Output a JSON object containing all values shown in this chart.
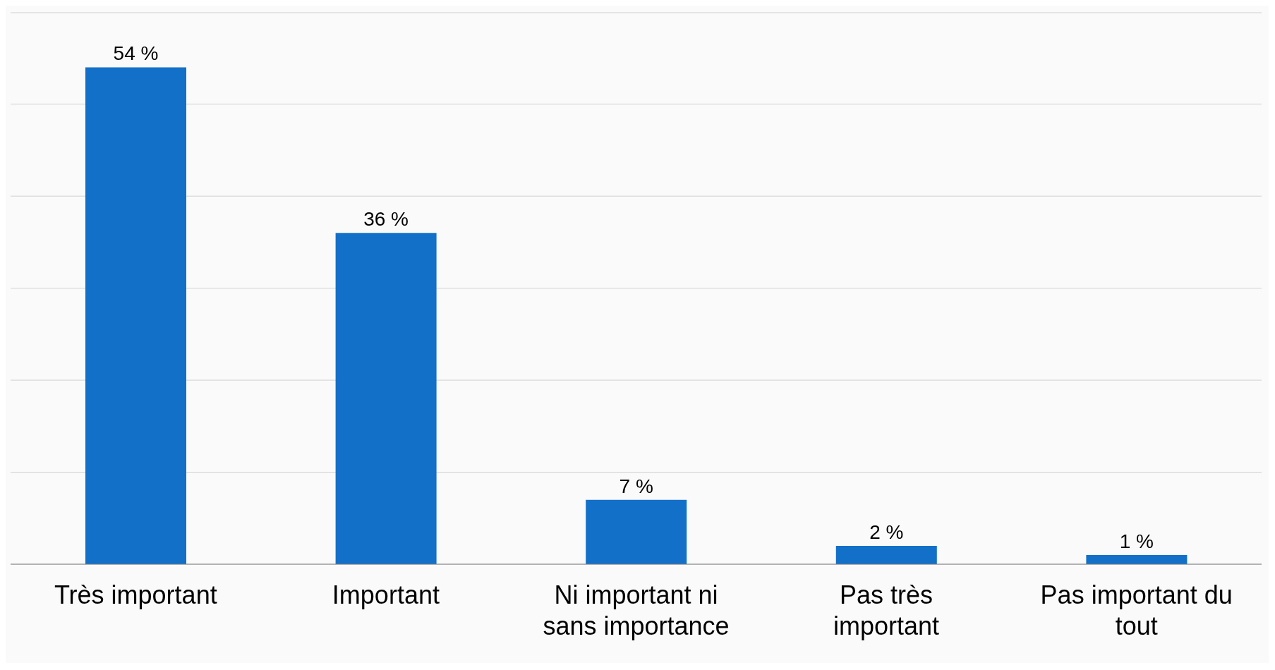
{
  "chart_data": {
    "type": "bar",
    "categories": [
      "Très important",
      "Important",
      "Ni important ni sans importance",
      "Pas très important",
      "Pas important du tout"
    ],
    "values": [
      54,
      36,
      7,
      2,
      1
    ],
    "value_labels": [
      "54 %",
      "36 %",
      "7 %",
      "2 %",
      "1 %"
    ],
    "color": "#1270c8",
    "grid": "y",
    "tick_labels": "x"
  }
}
